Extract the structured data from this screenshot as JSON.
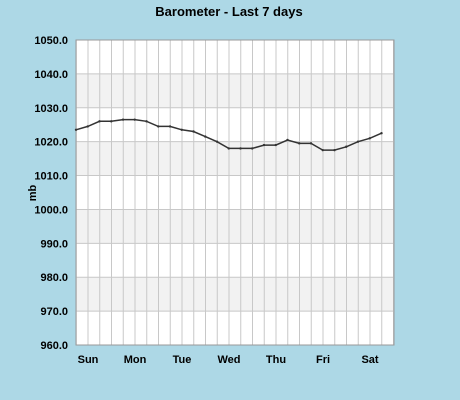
{
  "chart_data": {
    "type": "line",
    "title": "Barometer - Last 7 days",
    "xlabel": "",
    "ylabel": "mb",
    "ylim": [
      960,
      1050
    ],
    "y_ticks": [
      "1050.0",
      "1040.0",
      "1030.0",
      "1020.0",
      "1010.0",
      "1000.0",
      "990.0",
      "980.0",
      "970.0",
      "960.0"
    ],
    "x_tick_labels": [
      "Sun",
      "Mon",
      "Tue",
      "Wed",
      "Thu",
      "Fri",
      "Sat"
    ],
    "grid": true,
    "legend": "none",
    "colors": {
      "background": "#add8e6",
      "plot_background": "#ffffff",
      "band": "#f2f2f2",
      "grid": "#c8c8c8",
      "line": "#333333"
    },
    "series": [
      {
        "x_days": [
          0,
          0.25,
          0.5,
          0.75,
          1,
          1.25,
          1.5,
          1.75,
          2,
          2.25,
          2.5,
          2.75,
          3,
          3.25,
          3.5,
          3.75,
          4,
          4.25,
          4.5,
          4.75,
          5,
          5.25,
          5.5,
          5.75,
          6,
          6.25,
          6.5
        ],
        "values": [
          1023.5,
          1024.5,
          1026,
          1026,
          1026.5,
          1026.5,
          1026,
          1024.5,
          1024.5,
          1023.5,
          1023,
          1021.5,
          1020,
          1018,
          1018,
          1018,
          1019,
          1019,
          1020.5,
          1019.5,
          1019.5,
          1017.5,
          1017.5,
          1018.5,
          1020,
          1021,
          1022.5
        ]
      }
    ]
  }
}
